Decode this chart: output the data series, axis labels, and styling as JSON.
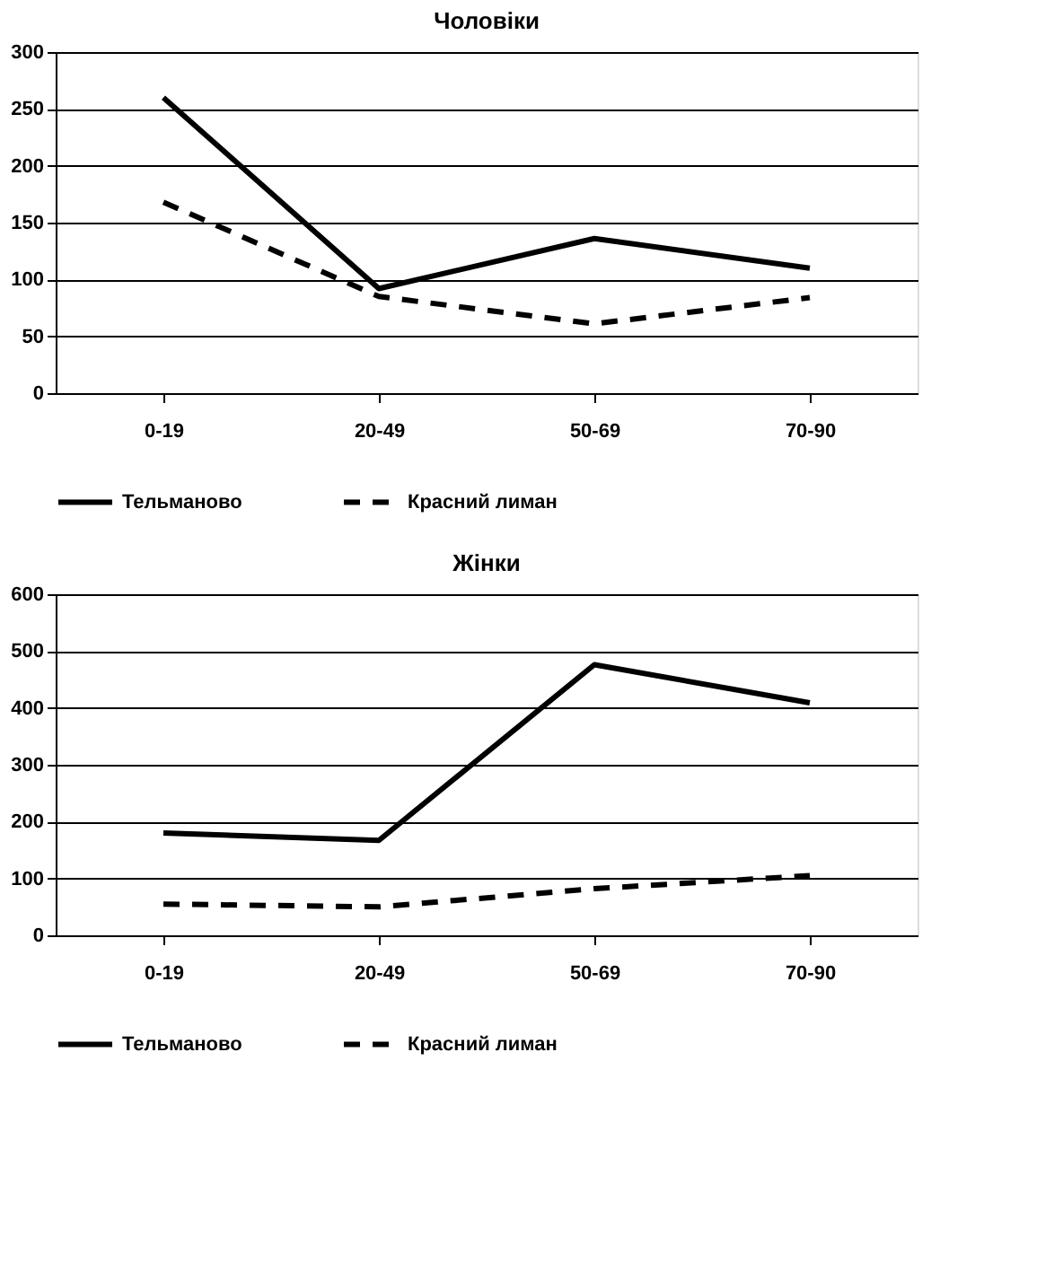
{
  "chart_data": [
    {
      "type": "line",
      "title": "Чоловіки",
      "categories": [
        "0-19",
        "20-49",
        "50-69",
        "70-90"
      ],
      "ylim": [
        0,
        300
      ],
      "yticks": [
        0,
        50,
        100,
        150,
        200,
        250,
        300
      ],
      "grid": "y",
      "legend": "bottom",
      "series": [
        {
          "name": "Тельманово",
          "color": "#000000",
          "line_style": "solid",
          "values": [
            260,
            92,
            136,
            110
          ]
        },
        {
          "name": "Красний лиман",
          "color": "#000000",
          "line_style": "dashed",
          "values": [
            168,
            85,
            61,
            84
          ]
        }
      ]
    },
    {
      "type": "line",
      "title": "Жінки",
      "categories": [
        "0-19",
        "20-49",
        "50-69",
        "70-90"
      ],
      "ylim": [
        0,
        600
      ],
      "yticks": [
        0,
        100,
        200,
        300,
        400,
        500,
        600
      ],
      "grid": "y",
      "legend": "bottom",
      "series": [
        {
          "name": "Тельманово",
          "color": "#000000",
          "line_style": "solid",
          "values": [
            180,
            167,
            476,
            409
          ]
        },
        {
          "name": "Красний лиман",
          "color": "#000000",
          "line_style": "dashed",
          "values": [
            55,
            50,
            82,
            105
          ]
        }
      ]
    }
  ]
}
